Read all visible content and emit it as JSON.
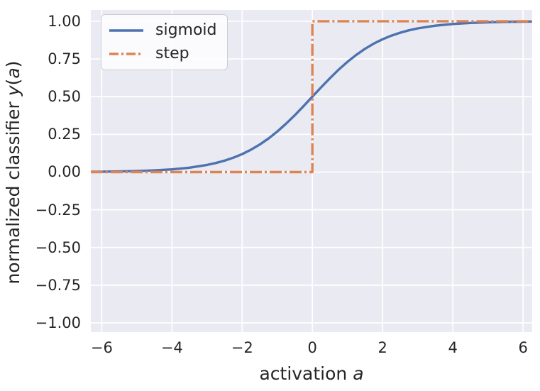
{
  "figure": {
    "background": "#ffffff",
    "axes_background": "#eaeaf2",
    "grid_color": "#ffffff",
    "text_color": "#262626",
    "legend_border": "#cbcbd4"
  },
  "axes": {
    "xlabel_text": "activation ",
    "xlabel_var": "a",
    "ylabel_text": "normalized classifier ",
    "ylabel_func": "y",
    "ylabel_open": "(",
    "ylabel_var": "a",
    "ylabel_close": ")"
  },
  "chart_data": {
    "type": "line",
    "title": "",
    "xlabel": "activation a",
    "ylabel": "normalized classifier y(a)",
    "xlim": [
      -6.31,
      6.26
    ],
    "ylim": [
      -1.061,
      1.075
    ],
    "xticks": [
      -6,
      -4,
      -2,
      0,
      2,
      4,
      6
    ],
    "xtick_labels": [
      "−6",
      "−4",
      "−2",
      "0",
      "2",
      "4",
      "6"
    ],
    "yticks": [
      1.0,
      0.75,
      0.5,
      0.25,
      0.0,
      -0.25,
      -0.5,
      -0.75,
      -1.0
    ],
    "ytick_labels": [
      "1.00",
      "0.75",
      "0.50",
      "0.25",
      "0.00",
      "−0.25",
      "−0.50",
      "−0.75",
      "−1.00"
    ],
    "grid": true,
    "legend_position": "upper left",
    "series": [
      {
        "name": "sigmoid",
        "color": "#4c72b0",
        "style": "solid",
        "x": [
          -6.31,
          -6,
          -5.5,
          -5,
          -4.5,
          -4,
          -3.5,
          -3,
          -2.75,
          -2.5,
          -2.25,
          -2,
          -1.75,
          -1.5,
          -1.25,
          -1,
          -0.75,
          -0.5,
          -0.25,
          0,
          0.25,
          0.5,
          0.75,
          1,
          1.25,
          1.5,
          1.75,
          2,
          2.25,
          2.5,
          2.75,
          3,
          3.5,
          4,
          4.5,
          5,
          5.5,
          6,
          6.26
        ],
        "y": [
          0.0018,
          0.0025,
          0.0041,
          0.0067,
          0.011,
          0.018,
          0.0293,
          0.0474,
          0.0601,
          0.0759,
          0.0953,
          0.1192,
          0.148,
          0.1824,
          0.2227,
          0.2689,
          0.3208,
          0.3775,
          0.4378,
          0.5,
          0.5622,
          0.6225,
          0.6792,
          0.7311,
          0.7773,
          0.8176,
          0.852,
          0.8808,
          0.9047,
          0.9241,
          0.9399,
          0.9526,
          0.9707,
          0.982,
          0.989,
          0.9933,
          0.9959,
          0.9975,
          0.9981
        ]
      },
      {
        "name": "step",
        "color": "#dd8452",
        "style": "dashdot",
        "x": [
          -6.31,
          0,
          0,
          6.26
        ],
        "y": [
          0,
          0,
          1,
          1
        ]
      }
    ]
  }
}
